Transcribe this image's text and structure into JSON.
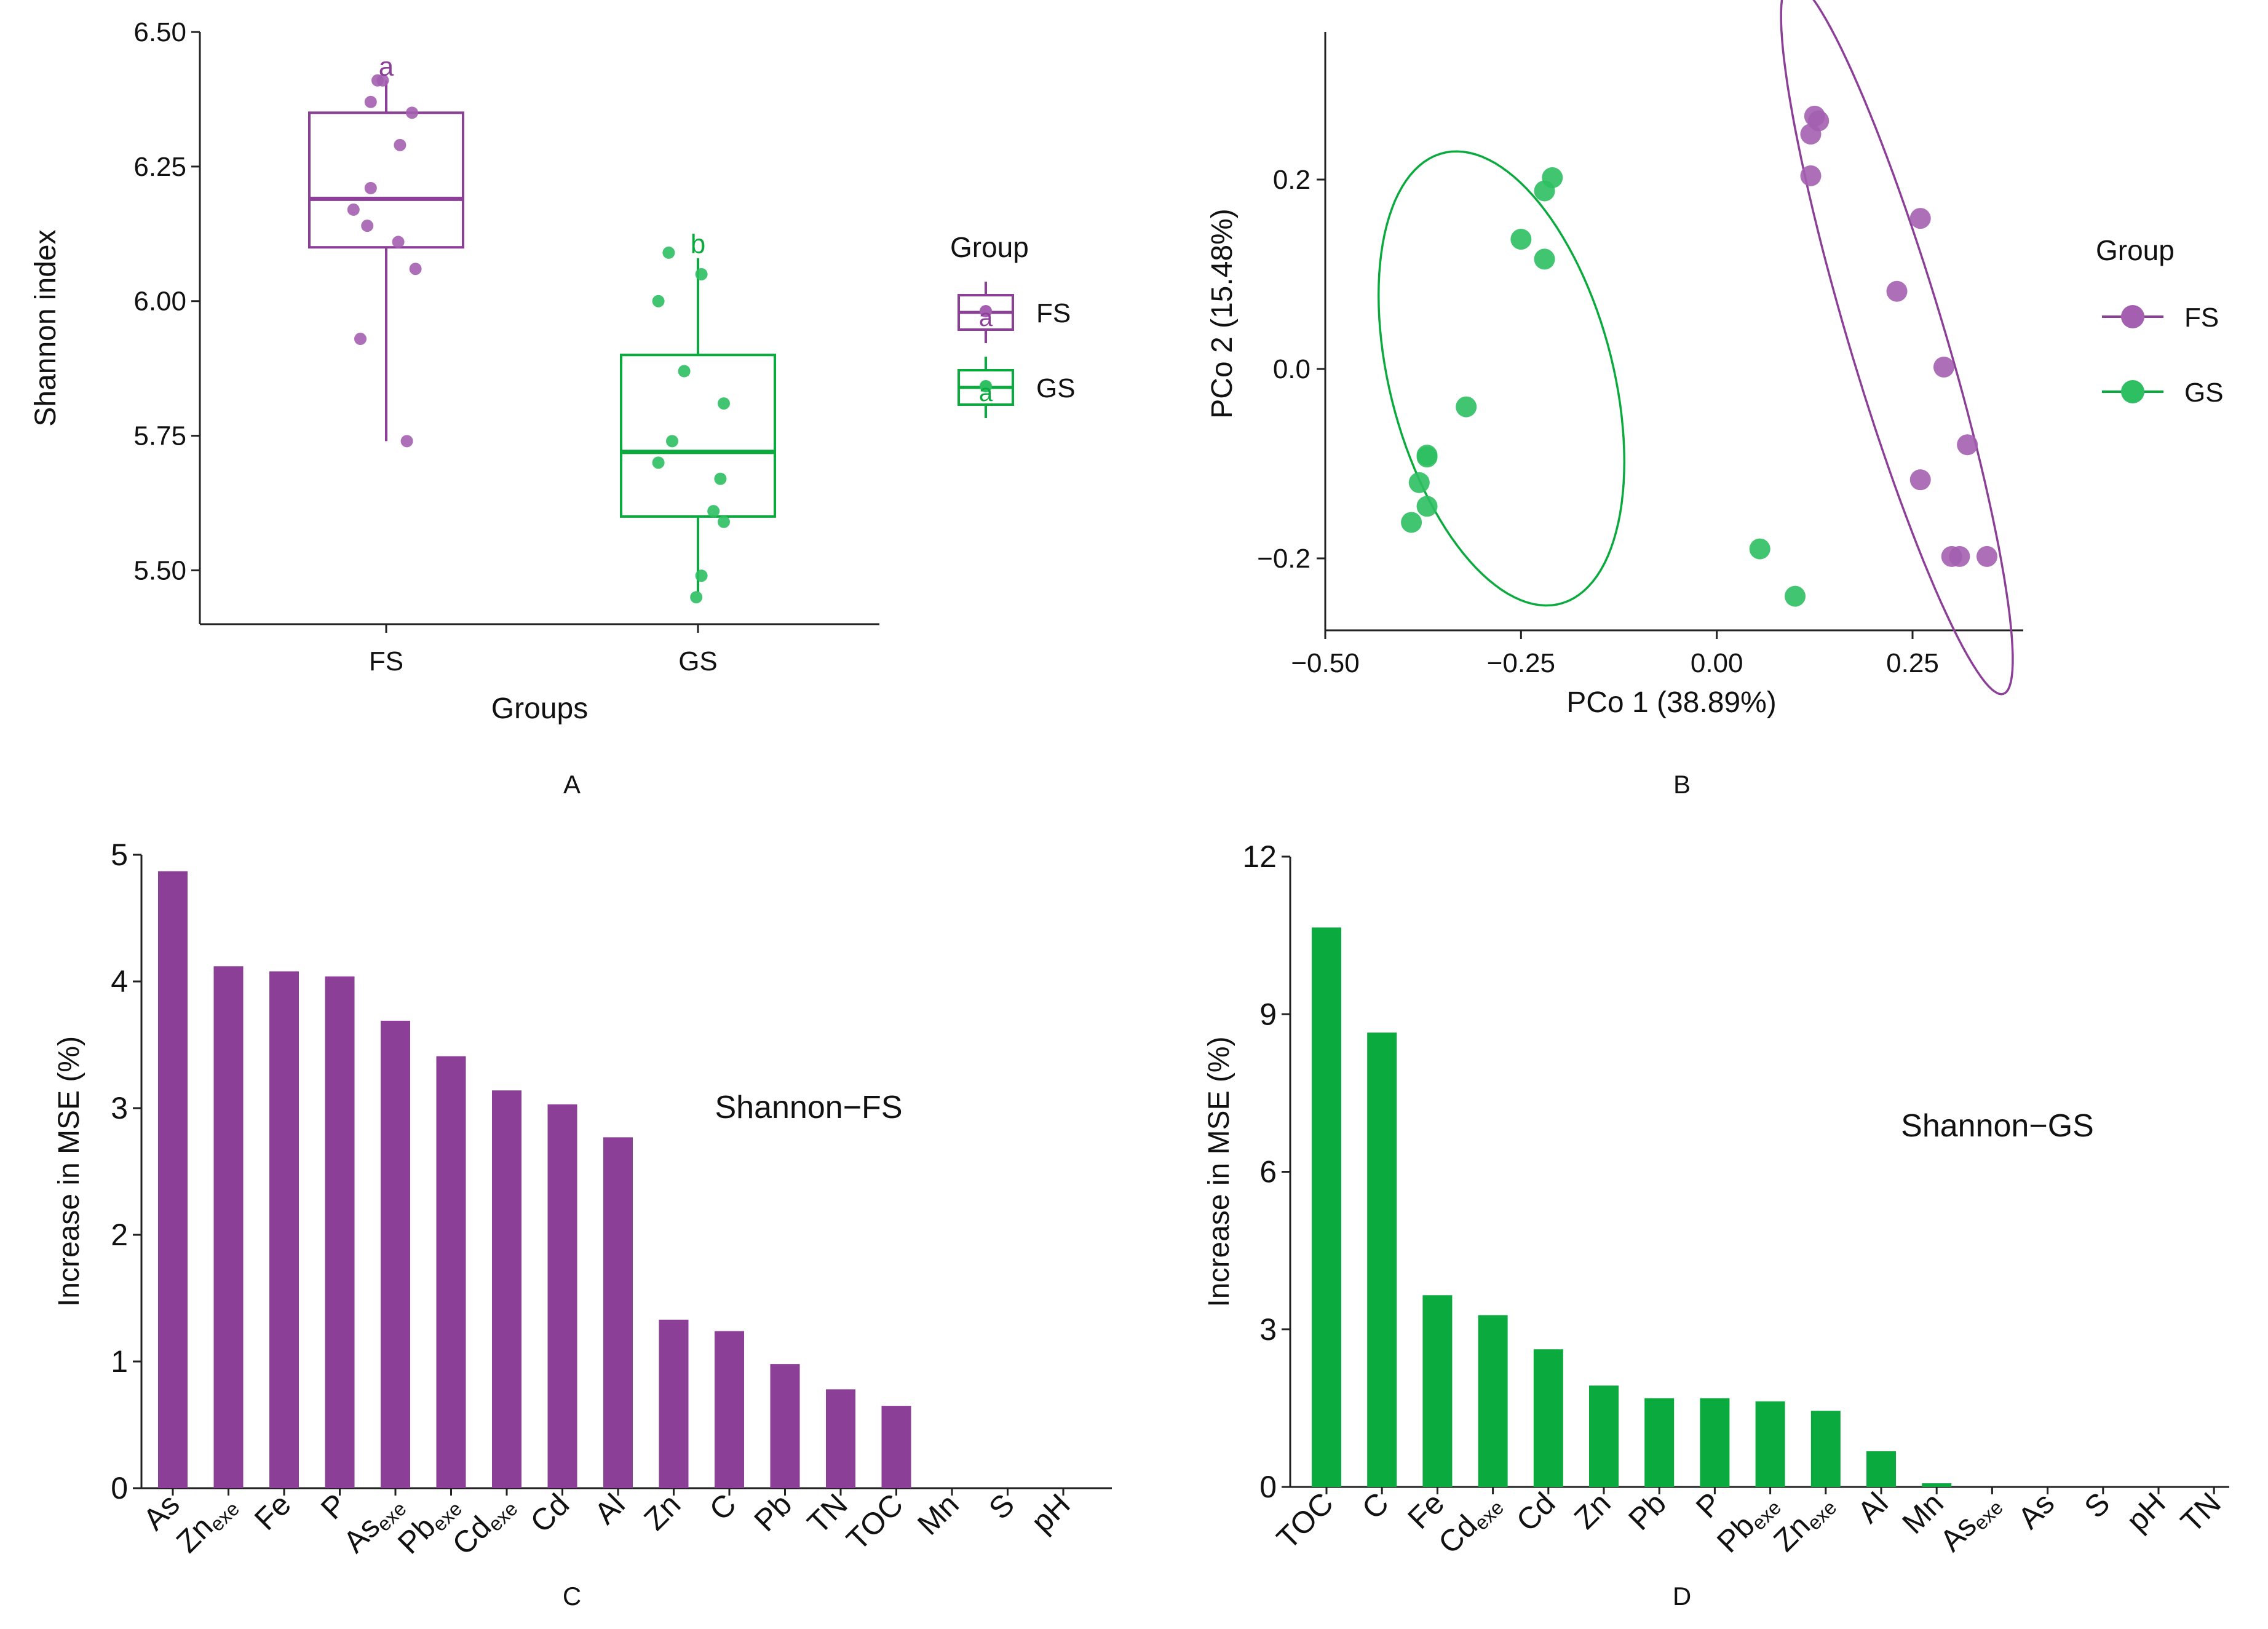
{
  "colors": {
    "fs": "#8B3F97",
    "fs_light": "#A45FB0",
    "gs": "#0BAA3E",
    "gs_light": "#2EBF62"
  },
  "panels": {
    "a": "A",
    "b": "B",
    "c": "C",
    "d": "D"
  },
  "chart_data": [
    {
      "id": "A",
      "type": "box",
      "ylabel": "Shannon index",
      "xlabel": "Groups",
      "ylim": [
        5.4,
        6.5
      ],
      "yticks": [
        5.5,
        5.75,
        6.0,
        6.25,
        6.5
      ],
      "ytick_labels": [
        "5.50",
        "5.75",
        "6.00",
        "6.25",
        "6.50"
      ],
      "categories": [
        "FS",
        "GS"
      ],
      "legend": {
        "title": "Group",
        "entries": [
          "FS",
          "GS"
        ],
        "placement": "right"
      },
      "series": [
        {
          "name": "FS",
          "whisker_low": 5.74,
          "q1": 6.1,
          "median": 6.19,
          "q3": 6.35,
          "whisker_high": 6.41,
          "letter": "a",
          "points": [
            [
              -0.05,
              6.41
            ],
            [
              -0.02,
              6.41
            ],
            [
              -0.09,
              6.37
            ],
            [
              0.15,
              6.35
            ],
            [
              0.08,
              6.29
            ],
            [
              -0.09,
              6.21
            ],
            [
              -0.19,
              6.17
            ],
            [
              -0.11,
              6.14
            ],
            [
              0.07,
              6.11
            ],
            [
              0.17,
              6.06
            ],
            [
              -0.15,
              5.93
            ],
            [
              0.12,
              5.74
            ]
          ]
        },
        {
          "name": "GS",
          "whisker_low": 5.46,
          "q1": 5.6,
          "median": 5.72,
          "q3": 5.9,
          "whisker_high": 6.08,
          "letter": "b",
          "points": [
            [
              -0.17,
              6.09
            ],
            [
              0.02,
              6.05
            ],
            [
              -0.23,
              6.0
            ],
            [
              -0.08,
              5.87
            ],
            [
              0.15,
              5.81
            ],
            [
              -0.15,
              5.74
            ],
            [
              -0.23,
              5.7
            ],
            [
              0.13,
              5.67
            ],
            [
              0.09,
              5.61
            ],
            [
              0.15,
              5.59
            ],
            [
              0.02,
              5.49
            ],
            [
              -0.01,
              5.45
            ]
          ]
        }
      ]
    },
    {
      "id": "B",
      "type": "scatter",
      "xlabel": "PCo 1 (38.89%)",
      "ylabel": "PCo 2 (15.48%)",
      "xlim": [
        -0.5,
        0.4
      ],
      "ylim": [
        -0.28,
        0.35
      ],
      "xticks": [
        -0.5,
        -0.25,
        0.0,
        0.25
      ],
      "xtick_labels": [
        "−0.50",
        "−0.25",
        "0.00",
        "0.25"
      ],
      "yticks": [
        -0.2,
        0.0,
        0.2
      ],
      "ytick_labels": [
        "−0.2",
        "0.0",
        "0.2"
      ],
      "legend": {
        "title": "Group",
        "entries": [
          "FS",
          "GS"
        ],
        "placement": "right"
      },
      "series": [
        {
          "name": "FS",
          "points": [
            [
              0.125,
              0.267
            ],
            [
              0.13,
              0.262
            ],
            [
              0.12,
              0.248
            ],
            [
              0.12,
              0.204
            ],
            [
              0.26,
              0.159
            ],
            [
              0.23,
              0.082
            ],
            [
              0.29,
              0.002
            ],
            [
              0.32,
              -0.08
            ],
            [
              0.26,
              -0.117
            ],
            [
              0.3,
              -0.198
            ],
            [
              0.31,
              -0.198
            ],
            [
              0.345,
              -0.198
            ]
          ],
          "ellipse": {
            "cx": 0.23,
            "cy": 0.033,
            "rx": 0.4,
            "ry": 0.06,
            "angle_deg": 290
          }
        },
        {
          "name": "GS",
          "points": [
            [
              -0.21,
              0.202
            ],
            [
              -0.22,
              0.188
            ],
            [
              -0.25,
              0.137
            ],
            [
              -0.22,
              0.116
            ],
            [
              -0.32,
              -0.04
            ],
            [
              -0.37,
              -0.091
            ],
            [
              -0.37,
              -0.093
            ],
            [
              -0.38,
              -0.12
            ],
            [
              -0.37,
              -0.145
            ],
            [
              -0.39,
              -0.162
            ],
            [
              0.055,
              -0.19
            ],
            [
              0.1,
              -0.24
            ]
          ],
          "ellipse": {
            "cx": -0.275,
            "cy": -0.01,
            "rx": 0.14,
            "ry": 0.25,
            "angle_deg": 20
          }
        }
      ]
    },
    {
      "id": "C",
      "type": "bar",
      "ylabel": "Increase in MSE (%)",
      "annotation": "Shannon−FS",
      "ylim": [
        0,
        5
      ],
      "yticks": [
        0,
        1,
        2,
        3,
        4,
        5
      ],
      "ytick_labels": [
        "0",
        "1",
        "2",
        "3",
        "4",
        "5"
      ],
      "categories": [
        {
          "label": "As",
          "sub": ""
        },
        {
          "label": "Zn",
          "sub": "exe"
        },
        {
          "label": "Fe",
          "sub": ""
        },
        {
          "label": "P",
          "sub": ""
        },
        {
          "label": "As",
          "sub": "exe"
        },
        {
          "label": "Pb",
          "sub": "exe"
        },
        {
          "label": "Cd",
          "sub": "exe"
        },
        {
          "label": "Cd",
          "sub": ""
        },
        {
          "label": "Al",
          "sub": ""
        },
        {
          "label": "Zn",
          "sub": ""
        },
        {
          "label": "C",
          "sub": ""
        },
        {
          "label": "Pb",
          "sub": ""
        },
        {
          "label": "TN",
          "sub": ""
        },
        {
          "label": "TOC",
          "sub": ""
        },
        {
          "label": "Mn",
          "sub": ""
        },
        {
          "label": "S",
          "sub": ""
        },
        {
          "label": "pH",
          "sub": ""
        }
      ],
      "values": [
        4.87,
        4.12,
        4.08,
        4.04,
        3.69,
        3.41,
        3.14,
        3.03,
        2.77,
        1.33,
        1.24,
        0.98,
        0.78,
        0.65,
        0,
        0,
        0
      ]
    },
    {
      "id": "D",
      "type": "bar",
      "ylabel": "Increase in MSE (%)",
      "annotation": "Shannon−GS",
      "ylim": [
        0,
        12
      ],
      "yticks": [
        0,
        3,
        6,
        9,
        12
      ],
      "ytick_labels": [
        "0",
        "3",
        "6",
        "9",
        "12"
      ],
      "categories": [
        {
          "label": "TOC",
          "sub": ""
        },
        {
          "label": "C",
          "sub": ""
        },
        {
          "label": "Fe",
          "sub": ""
        },
        {
          "label": "Cd",
          "sub": "exe"
        },
        {
          "label": "Cd",
          "sub": ""
        },
        {
          "label": "Zn",
          "sub": ""
        },
        {
          "label": "Pb",
          "sub": ""
        },
        {
          "label": "P",
          "sub": ""
        },
        {
          "label": "Pb",
          "sub": "exe"
        },
        {
          "label": "Zn",
          "sub": "exe"
        },
        {
          "label": "Al",
          "sub": ""
        },
        {
          "label": "Mn",
          "sub": ""
        },
        {
          "label": "As",
          "sub": "exe"
        },
        {
          "label": "As",
          "sub": ""
        },
        {
          "label": "S",
          "sub": ""
        },
        {
          "label": "pH",
          "sub": ""
        },
        {
          "label": "TN",
          "sub": ""
        }
      ],
      "values": [
        10.65,
        8.65,
        3.65,
        3.27,
        2.62,
        1.93,
        1.69,
        1.69,
        1.63,
        1.45,
        0.68,
        0.07,
        0,
        0,
        0,
        0,
        0
      ]
    }
  ]
}
